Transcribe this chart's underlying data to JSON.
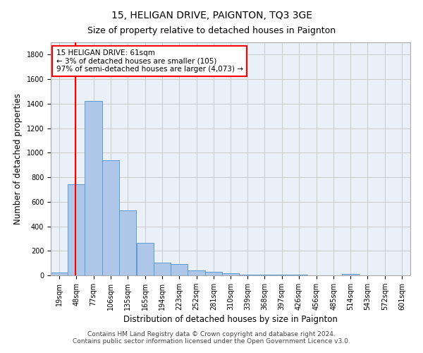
{
  "title1": "15, HELIGAN DRIVE, PAIGNTON, TQ3 3GE",
  "title2": "Size of property relative to detached houses in Paignton",
  "xlabel": "Distribution of detached houses by size in Paignton",
  "ylabel": "Number of detached properties",
  "footer1": "Contains HM Land Registry data © Crown copyright and database right 2024.",
  "footer2": "Contains public sector information licensed under the Open Government Licence v3.0.",
  "bin_labels": [
    "19sqm",
    "48sqm",
    "77sqm",
    "106sqm",
    "135sqm",
    "165sqm",
    "194sqm",
    "223sqm",
    "252sqm",
    "281sqm",
    "310sqm",
    "339sqm",
    "368sqm",
    "397sqm",
    "426sqm",
    "456sqm",
    "485sqm",
    "514sqm",
    "543sqm",
    "572sqm",
    "601sqm"
  ],
  "bin_edges": [
    19,
    48,
    77,
    106,
    135,
    165,
    194,
    223,
    252,
    281,
    310,
    339,
    368,
    397,
    426,
    456,
    485,
    514,
    543,
    572,
    601
  ],
  "bar_values": [
    25,
    740,
    1420,
    940,
    530,
    265,
    105,
    95,
    40,
    30,
    15,
    5,
    5,
    5,
    3,
    2,
    2,
    10,
    2,
    2,
    2
  ],
  "bar_color": "#aec6e8",
  "bar_edge_color": "#5b9bd5",
  "property_line_x": 61,
  "property_line_color": "red",
  "annotation_line1": "15 HELIGAN DRIVE: 61sqm",
  "annotation_line2": "← 3% of detached houses are smaller (105)",
  "annotation_line3": "97% of semi-detached houses are larger (4,073) →",
  "annotation_box_color": "white",
  "annotation_box_edge": "red",
  "ylim": [
    0,
    1900
  ],
  "yticks": [
    0,
    200,
    400,
    600,
    800,
    1000,
    1200,
    1400,
    1600,
    1800
  ],
  "grid_color": "#cccccc",
  "bg_color": "#eaf0f8",
  "title1_fontsize": 10,
  "title2_fontsize": 9,
  "xlabel_fontsize": 8.5,
  "ylabel_fontsize": 8.5,
  "footer_fontsize": 6.5,
  "tick_fontsize": 7,
  "annot_fontsize": 7.5
}
